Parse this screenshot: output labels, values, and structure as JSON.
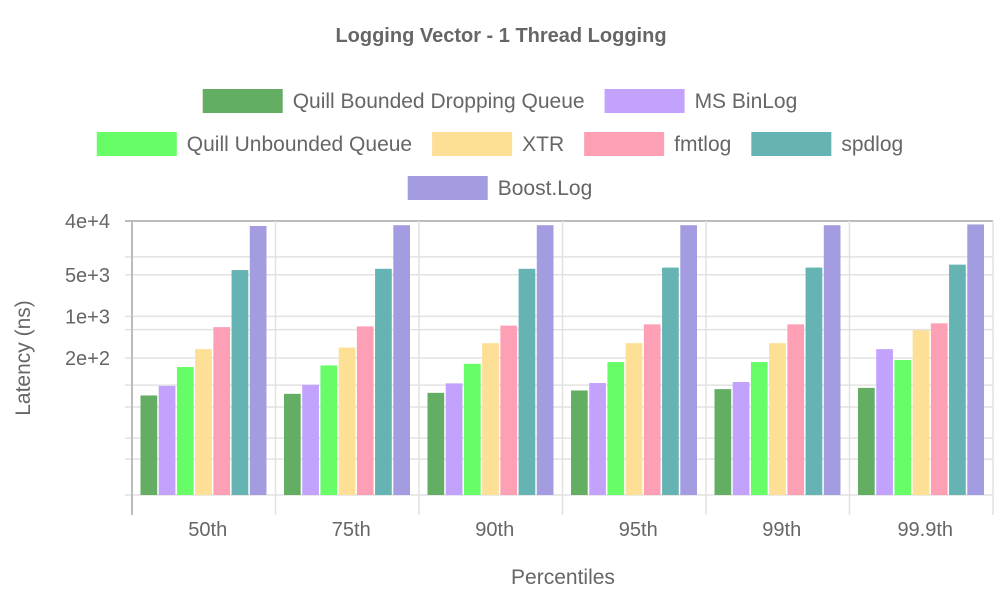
{
  "chart_data": {
    "type": "bar",
    "title": "Logging Vector - 1 Thread Logging",
    "xlabel": "Percentiles",
    "ylabel": "Latency (ns)",
    "yscale": "log",
    "ylim": [
      1,
      40000
    ],
    "y_tick_labels": [
      {
        "value": 40000,
        "label": "4e+4"
      },
      {
        "value": 5000,
        "label": "5e+3"
      },
      {
        "value": 1000,
        "label": "1e+3"
      },
      {
        "value": 200,
        "label": "2e+2"
      }
    ],
    "y_unlabeled_gridlines": [
      10000,
      600,
      70,
      30,
      9,
      4
    ],
    "grid": true,
    "legend_position": "top",
    "categories": [
      "50th",
      "75th",
      "90th",
      "95th",
      "99th",
      "99.9th"
    ],
    "series": [
      {
        "name": "Quill Bounded Dropping Queue",
        "color": "#64ae64",
        "values": [
          47,
          50,
          52,
          57,
          60,
          63
        ]
      },
      {
        "name": "MS BinLog",
        "color": "#c2a2fd",
        "values": [
          68,
          71,
          75,
          76,
          79,
          282
        ]
      },
      {
        "name": "Quill Unbounded Queue",
        "color": "#66fd66",
        "values": [
          141,
          150,
          160,
          171,
          171,
          185
        ]
      },
      {
        "name": "XTR",
        "color": "#fde096",
        "values": [
          282,
          300,
          355,
          355,
          355,
          585
        ]
      },
      {
        "name": "fmtlog",
        "color": "#fda0b5",
        "values": [
          660,
          680,
          700,
          735,
          735,
          765
        ]
      },
      {
        "name": "spdlog",
        "color": "#66b3b3",
        "values": [
          6000,
          6300,
          6300,
          6600,
          6600,
          7400
        ]
      },
      {
        "name": "Boost.Log",
        "color": "#a39ce0",
        "values": [
          33000,
          34000,
          34000,
          34000,
          34000,
          35000
        ]
      }
    ]
  }
}
